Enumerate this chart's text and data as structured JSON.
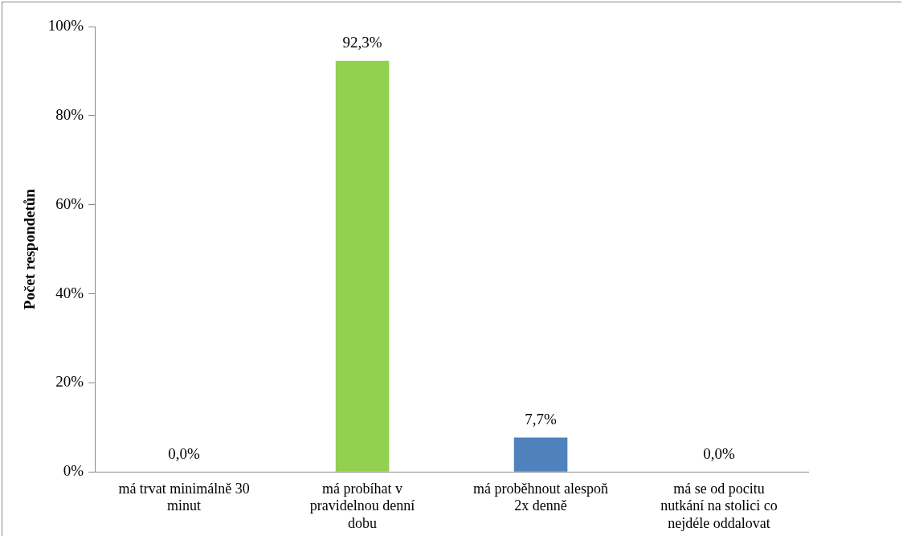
{
  "chart_data": {
    "type": "bar",
    "ylabel": "Počet respondetůn",
    "categories": [
      "má trvat minimálně 30 minut",
      "má probíhat v pravidelnou denní dobu",
      "má proběhnout alespoň 2x denně",
      "má se od pocitu nutkání na stolici co nejdéle oddalovat"
    ],
    "values": [
      0,
      92.3,
      7.7,
      0
    ],
    "colors": [
      "#4f81bd",
      "#92d050",
      "#4f81bd",
      "#4f81bd"
    ],
    "value_labels": [
      "0,0%",
      "92,3%",
      "7,7%",
      "0,0%"
    ],
    "ylim": [
      0,
      100
    ],
    "yticks": [
      {
        "value": 0,
        "label": "0%"
      },
      {
        "value": 20,
        "label": "20%"
      },
      {
        "value": 40,
        "label": "40%"
      },
      {
        "value": 60,
        "label": "60%"
      },
      {
        "value": 80,
        "label": "80%"
      },
      {
        "value": 100,
        "label": "100%"
      }
    ],
    "grid": false,
    "legend": false
  }
}
